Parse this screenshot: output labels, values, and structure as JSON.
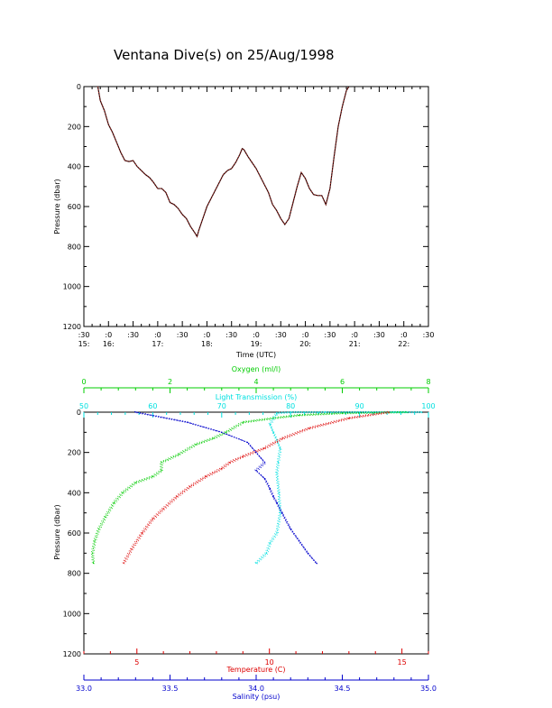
{
  "title": "Ventana Dive(s) on 25/Aug/1998",
  "colors": {
    "axis": "#000000",
    "depth_trace": "#2a0000",
    "depth_trace_dots": "#c83228",
    "oxygen": "#00cc00",
    "light_transmission": "#00e0e0",
    "temperature": "#dd0000",
    "salinity": "#0000cc"
  },
  "chart_data": [
    {
      "type": "line",
      "title": "",
      "xlabel": "Time (UTC)",
      "ylabel": "Pressure (dbar)",
      "x_range_minutes_after_15h": [
        30,
        450
      ],
      "y_range": [
        1200,
        0
      ],
      "y_ticks": [
        "0",
        "200",
        "400",
        "600",
        "800",
        "1000",
        "1200"
      ],
      "x_tick_labels_top": [
        ":30",
        ":0",
        ":30",
        ":0",
        ":30",
        ":0",
        ":30",
        ":0",
        ":30",
        ":0",
        ":30",
        ":0",
        ":30",
        ":0",
        ":30"
      ],
      "x_tick_labels_bottom": [
        "15:",
        "16:",
        "",
        "17:",
        "",
        "18:",
        "",
        "19:",
        "",
        "20:",
        "",
        "21:",
        "",
        "22:",
        ""
      ],
      "series": [
        {
          "points": [
            [
              "15:47",
              0
            ],
            [
              "15:50",
              70
            ],
            [
              "15:55",
              120
            ],
            [
              "16:00",
              190
            ],
            [
              "16:05",
              230
            ],
            [
              "16:10",
              280
            ],
            [
              "16:15",
              330
            ],
            [
              "16:20",
              370
            ],
            [
              "16:25",
              375
            ],
            [
              "16:30",
              370
            ],
            [
              "16:35",
              400
            ],
            [
              "16:40",
              420
            ],
            [
              "16:45",
              440
            ],
            [
              "16:50",
              455
            ],
            [
              "16:55",
              480
            ],
            [
              "17:00",
              510
            ],
            [
              "17:05",
              510
            ],
            [
              "17:10",
              530
            ],
            [
              "17:15",
              580
            ],
            [
              "17:20",
              590
            ],
            [
              "17:25",
              610
            ],
            [
              "17:30",
              640
            ],
            [
              "17:35",
              660
            ],
            [
              "17:40",
              700
            ],
            [
              "17:45",
              730
            ],
            [
              "17:48",
              750
            ],
            [
              "17:50",
              720
            ],
            [
              "17:55",
              660
            ],
            [
              "18:00",
              600
            ],
            [
              "18:05",
              560
            ],
            [
              "18:10",
              520
            ],
            [
              "18:15",
              480
            ],
            [
              "18:20",
              440
            ],
            [
              "18:25",
              420
            ],
            [
              "18:30",
              410
            ],
            [
              "18:35",
              380
            ],
            [
              "18:40",
              340
            ],
            [
              "18:43",
              310
            ],
            [
              "18:45",
              315
            ],
            [
              "18:50",
              350
            ],
            [
              "18:55",
              380
            ],
            [
              "19:00",
              410
            ],
            [
              "19:05",
              450
            ],
            [
              "19:10",
              490
            ],
            [
              "19:15",
              530
            ],
            [
              "19:20",
              590
            ],
            [
              "19:25",
              620
            ],
            [
              "19:30",
              660
            ],
            [
              "19:35",
              690
            ],
            [
              "19:40",
              660
            ],
            [
              "19:45",
              580
            ],
            [
              "19:50",
              500
            ],
            [
              "19:55",
              430
            ],
            [
              "20:00",
              460
            ],
            [
              "20:05",
              510
            ],
            [
              "20:10",
              540
            ],
            [
              "20:15",
              545
            ],
            [
              "20:20",
              545
            ],
            [
              "20:25",
              590
            ],
            [
              "20:30",
              510
            ],
            [
              "20:35",
              350
            ],
            [
              "20:40",
              200
            ],
            [
              "20:45",
              100
            ],
            [
              "20:50",
              20
            ],
            [
              "20:53",
              0
            ]
          ]
        }
      ]
    },
    {
      "type": "scatter",
      "title": "",
      "ylabel": "Pressure (dbar)",
      "y_range": [
        1200,
        0
      ],
      "y_ticks": [
        "0",
        "200",
        "400",
        "600",
        "800",
        "1000",
        "1200"
      ],
      "x_axes": [
        {
          "position": "top-outer",
          "label": "Oxygen (ml/l)",
          "range": [
            0,
            8
          ],
          "tick_labels": [
            "0",
            "2",
            "4",
            "6",
            "8"
          ],
          "color": "#00cc00"
        },
        {
          "position": "top-inner",
          "label": "Light Transmission (%)",
          "range": [
            50,
            100
          ],
          "tick_labels": [
            "50",
            "60",
            "70",
            "80",
            "90",
            "100"
          ],
          "color": "#00e0e0"
        },
        {
          "position": "bottom-inner",
          "label": "Temperature (C)",
          "range": [
            3,
            16
          ],
          "tick_labels": [
            "5",
            "10",
            "15"
          ],
          "color": "#dd0000"
        },
        {
          "position": "bottom-outer",
          "label": "Salinity (psu)",
          "range": [
            33.0,
            35.0
          ],
          "tick_labels": [
            "33.0",
            "33.5",
            "34.0",
            "34.5",
            "35.0"
          ],
          "color": "#0000cc"
        }
      ],
      "series": [
        {
          "variable": "oxygen",
          "color": "#00cc00",
          "points": [
            [
              7.5,
              0
            ],
            [
              6.0,
              5
            ],
            [
              5.0,
              15
            ],
            [
              4.4,
              30
            ],
            [
              3.7,
              50
            ],
            [
              3.3,
              100
            ],
            [
              3.0,
              130
            ],
            [
              2.6,
              160
            ],
            [
              2.2,
              210
            ],
            [
              1.8,
              250
            ],
            [
              1.8,
              290
            ],
            [
              1.6,
              320
            ],
            [
              1.2,
              350
            ],
            [
              0.9,
              400
            ],
            [
              0.7,
              450
            ],
            [
              0.5,
              520
            ],
            [
              0.35,
              580
            ],
            [
              0.25,
              640
            ],
            [
              0.2,
              700
            ],
            [
              0.22,
              750
            ]
          ]
        },
        {
          "variable": "light_transmission",
          "color": "#00e0e0",
          "points": [
            [
              99,
              0
            ],
            [
              95,
              0
            ],
            [
              90,
              0
            ],
            [
              85,
              0
            ],
            [
              80,
              0
            ],
            [
              78,
              5
            ],
            [
              77,
              60
            ],
            [
              77.5,
              100
            ],
            [
              78.5,
              180
            ],
            [
              78.2,
              250
            ],
            [
              78.0,
              300
            ],
            [
              78.3,
              400
            ],
            [
              78.5,
              500
            ],
            [
              78.0,
              600
            ],
            [
              77.0,
              650
            ],
            [
              76.5,
              700
            ],
            [
              75.0,
              750
            ]
          ]
        },
        {
          "variable": "temperature",
          "color": "#dd0000",
          "points": [
            [
              14.5,
              0
            ],
            [
              13.0,
              30
            ],
            [
              11.5,
              80
            ],
            [
              10.5,
              130
            ],
            [
              9.8,
              180
            ],
            [
              9.0,
              220
            ],
            [
              8.5,
              250
            ],
            [
              8.2,
              280
            ],
            [
              7.6,
              320
            ],
            [
              7.0,
              370
            ],
            [
              6.5,
              420
            ],
            [
              6.0,
              480
            ],
            [
              5.6,
              530
            ],
            [
              5.2,
              600
            ],
            [
              4.8,
              680
            ],
            [
              4.5,
              750
            ]
          ]
        },
        {
          "variable": "salinity",
          "color": "#0000cc",
          "points": [
            [
              33.3,
              0
            ],
            [
              33.6,
              50
            ],
            [
              33.8,
              100
            ],
            [
              33.95,
              150
            ],
            [
              34.0,
              200
            ],
            [
              34.05,
              250
            ],
            [
              34.0,
              290
            ],
            [
              34.05,
              330
            ],
            [
              34.08,
              380
            ],
            [
              34.1,
              420
            ],
            [
              34.12,
              450
            ],
            [
              34.15,
              500
            ],
            [
              34.2,
              580
            ],
            [
              34.25,
              640
            ],
            [
              34.3,
              700
            ],
            [
              34.35,
              750
            ]
          ]
        }
      ]
    }
  ]
}
